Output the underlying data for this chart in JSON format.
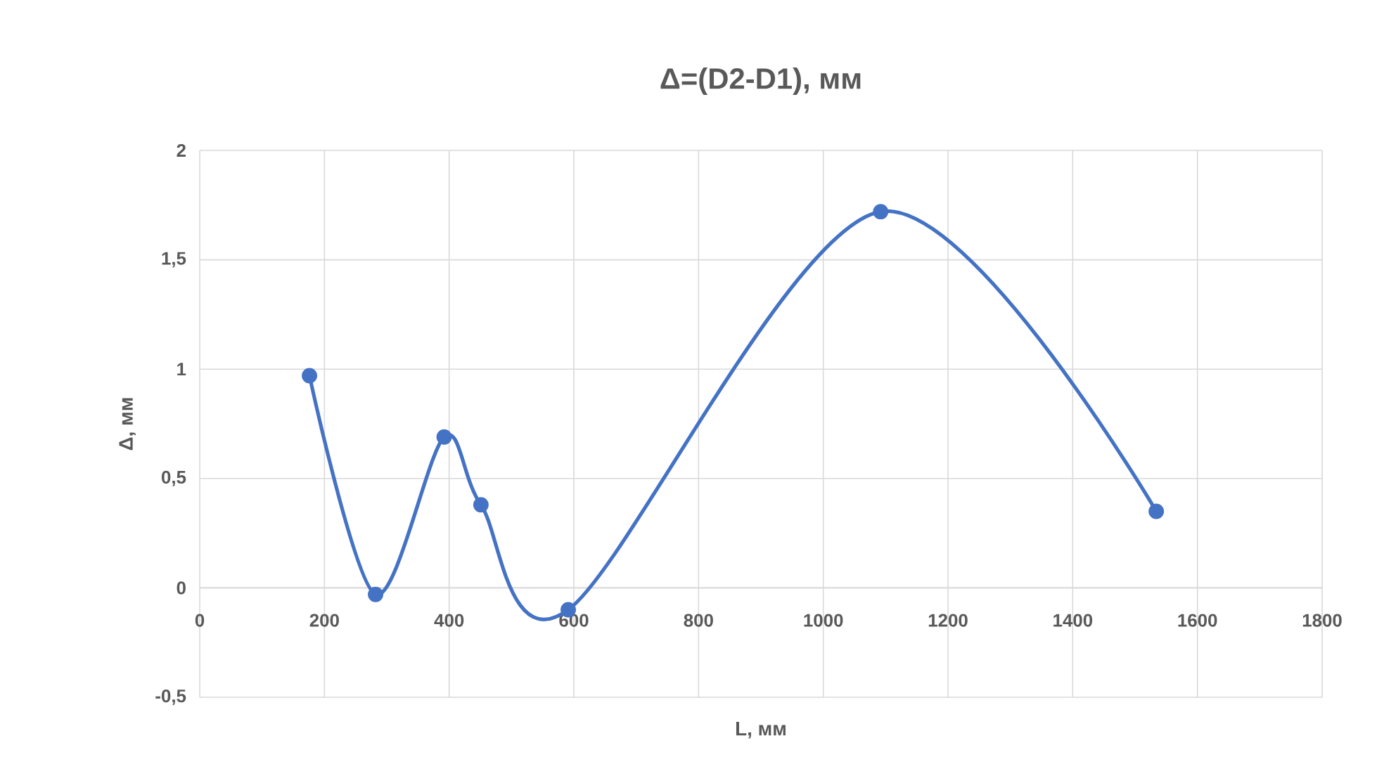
{
  "chart_data": {
    "type": "line",
    "title": "Δ=(D2-D1), мм",
    "xlabel": "L, мм",
    "ylabel": "Δ, мм",
    "x": [
      176,
      282,
      392,
      451,
      591,
      1092,
      1534
    ],
    "series": [
      {
        "color": "#4472c4",
        "values": [
          0.97,
          -0.03,
          0.69,
          0.38,
          -0.1,
          1.72,
          0.35
        ]
      }
    ],
    "xlim": [
      0,
      1800
    ],
    "xticks": [
      0,
      200,
      400,
      600,
      800,
      1000,
      1200,
      1400,
      1600,
      1800
    ],
    "ylim": [
      -0.5,
      2
    ],
    "yticks": [
      {
        "value": -0.5,
        "label": "-0,5"
      },
      0,
      {
        "value": 0.5,
        "label": "0,5"
      },
      1,
      {
        "value": 1.5,
        "label": "1,5"
      },
      2
    ],
    "grid": true,
    "marker": "circle",
    "line_style": "solid"
  }
}
